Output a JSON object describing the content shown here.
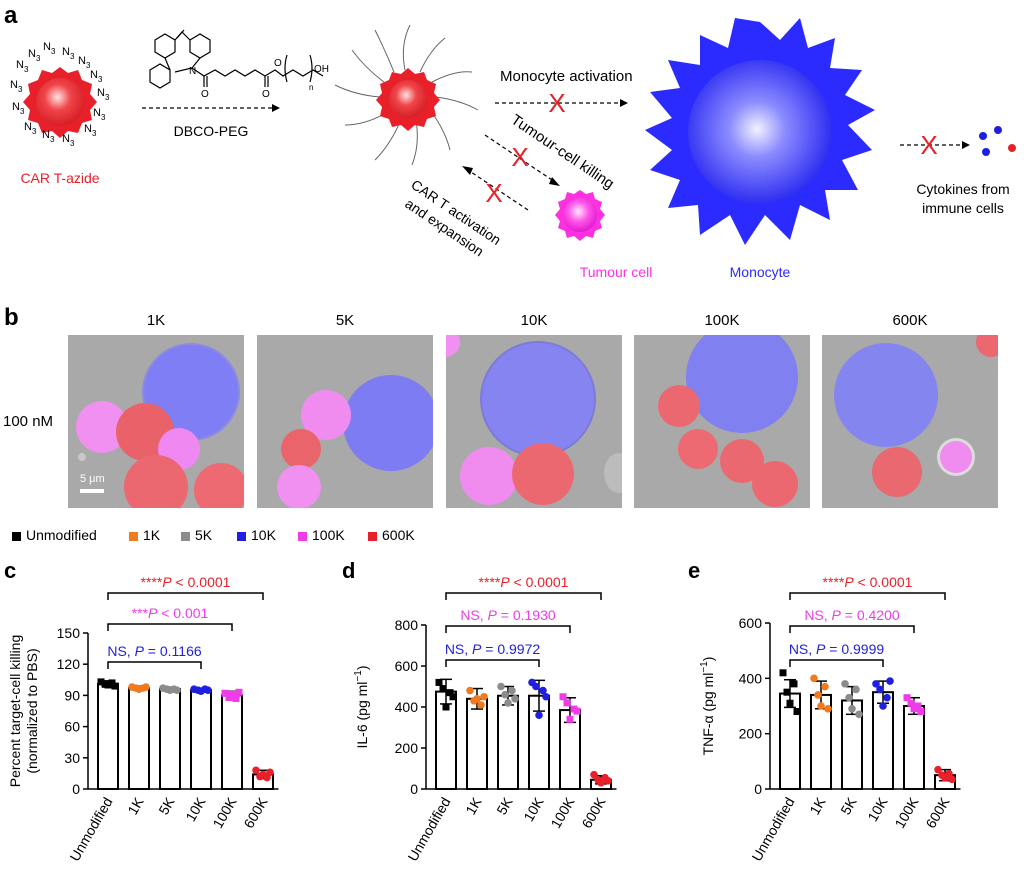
{
  "panel_a": {
    "letter": "a",
    "azide_label": "N",
    "azide_sub": "3",
    "car_t_label": "CAR T-azide",
    "arrow_label": "DBCO-PEG",
    "dbco_o1": "O",
    "dbco_n": "N",
    "dbco_o2": "O",
    "dbco_o3": "O",
    "dbco_oh": "OH",
    "dbco_n_sub": "n",
    "monocyte_activation": "Monocyte activation",
    "tumour_killing": "Tumour-cell killing",
    "car_t_activation_line1": "CAR T activation",
    "car_t_activation_line2": "and expansion",
    "tumour_cell": "Tumour cell",
    "monocyte": "Monocyte",
    "cytokines_line1": "Cytokines from",
    "cytokines_line2": "immune cells",
    "block_mark": "X",
    "colors": {
      "car_t": "#e8202a",
      "monocyte": "#2b2bff",
      "tumour": "#ff30e0",
      "cross": "#e8202a"
    }
  },
  "panel_b": {
    "letter": "b",
    "row_label": "100 nM",
    "scale_bar": "5 μm",
    "columns": [
      "1K",
      "5K",
      "10K",
      "100K",
      "600K"
    ]
  },
  "legend": {
    "items": [
      {
        "label": "Unmodified",
        "color": "#000000"
      },
      {
        "label": "1K",
        "color": "#f07a20"
      },
      {
        "label": "5K",
        "color": "#8c8c8c"
      },
      {
        "label": "10K",
        "color": "#1f1fe0"
      },
      {
        "label": "100K",
        "color": "#f03ce8"
      },
      {
        "label": "600K",
        "color": "#e8202a"
      }
    ]
  },
  "chart_data": [
    {
      "letter": "c",
      "type": "bar",
      "categories": [
        "Unmodified",
        "1K",
        "5K",
        "10K",
        "100K",
        "600K"
      ],
      "values": [
        101,
        97,
        96,
        95,
        90,
        14
      ],
      "errors": [
        3,
        2,
        2,
        2,
        4,
        4
      ],
      "points": [
        [
          103,
          101,
          100,
          102,
          99
        ],
        [
          98,
          97,
          96,
          97,
          98
        ],
        [
          97,
          96,
          95,
          96,
          95
        ],
        [
          96,
          95,
          94,
          96,
          95
        ],
        [
          92,
          88,
          91,
          87,
          93
        ],
        [
          18,
          12,
          14,
          11,
          16
        ]
      ],
      "ylabel_line1": "Percent target-cell killing",
      "ylabel_line2": "(normalized to PBS)",
      "ylim": [
        0,
        150
      ],
      "yticks": [
        0,
        30,
        60,
        90,
        120,
        150
      ],
      "comparisons": [
        {
          "from": 0,
          "to": 3,
          "prefix": "NS, ",
          "p": "P",
          "rest": " = 0.1166",
          "color": "#1f1fe0"
        },
        {
          "from": 0,
          "to": 4,
          "prefix": "***",
          "p": "P",
          "rest": " < 0.001",
          "color": "#f03ce8"
        },
        {
          "from": 0,
          "to": 5,
          "prefix": "****",
          "p": "P",
          "rest": " < 0.0001",
          "color": "#e8202a"
        }
      ]
    },
    {
      "letter": "d",
      "type": "bar",
      "categories": [
        "Unmodified",
        "1K",
        "5K",
        "10K",
        "100K",
        "600K"
      ],
      "values": [
        475,
        440,
        455,
        455,
        385,
        45
      ],
      "errors": [
        60,
        50,
        45,
        75,
        60,
        20
      ],
      "points": [
        [
          520,
          490,
          400,
          470,
          450
        ],
        [
          480,
          430,
          440,
          410,
          450
        ],
        [
          500,
          460,
          420,
          480,
          440
        ],
        [
          520,
          500,
          360,
          480,
          450
        ],
        [
          450,
          420,
          340,
          390,
          380
        ],
        [
          70,
          45,
          30,
          55,
          40
        ]
      ],
      "ylabel": "IL-6 (pg ml",
      "ylabel_sup": "−1",
      "ylabel_end": ")",
      "ylim": [
        0,
        800
      ],
      "yticks": [
        0,
        200,
        400,
        600,
        800
      ],
      "comparisons": [
        {
          "from": 0,
          "to": 3,
          "prefix": "NS, ",
          "p": "P",
          "rest": " = 0.9972",
          "color": "#1f1fe0"
        },
        {
          "from": 0,
          "to": 4,
          "prefix": "NS, ",
          "p": "P",
          "rest": " = 0.1930",
          "color": "#f03ce8"
        },
        {
          "from": 0,
          "to": 5,
          "prefix": "****",
          "p": "P",
          "rest": " < 0.0001",
          "color": "#e8202a"
        }
      ]
    },
    {
      "letter": "e",
      "type": "bar",
      "categories": [
        "Unmodified",
        "1K",
        "5K",
        "10K",
        "100K",
        "600K"
      ],
      "values": [
        345,
        340,
        320,
        350,
        300,
        50
      ],
      "errors": [
        50,
        50,
        50,
        40,
        30,
        20
      ],
      "points": [
        [
          420,
          350,
          310,
          380,
          280
        ],
        [
          400,
          340,
          300,
          370,
          290
        ],
        [
          380,
          330,
          290,
          360,
          270
        ],
        [
          380,
          360,
          300,
          330,
          390
        ],
        [
          330,
          310,
          290,
          300,
          280
        ],
        [
          70,
          50,
          40,
          55,
          35
        ]
      ],
      "ylabel": "TNF-α (pg ml",
      "ylabel_sup": "−1",
      "ylabel_end": ")",
      "ylim": [
        0,
        600
      ],
      "yticks": [
        0,
        200,
        400,
        600
      ],
      "comparisons": [
        {
          "from": 0,
          "to": 3,
          "prefix": "NS, ",
          "p": "P",
          "rest": " = 0.9999",
          "color": "#1f1fe0"
        },
        {
          "from": 0,
          "to": 4,
          "prefix": "NS, ",
          "p": "P",
          "rest": " = 0.4200",
          "color": "#f03ce8"
        },
        {
          "from": 0,
          "to": 5,
          "prefix": "****",
          "p": "P",
          "rest": " < 0.0001",
          "color": "#e8202a"
        }
      ]
    }
  ]
}
